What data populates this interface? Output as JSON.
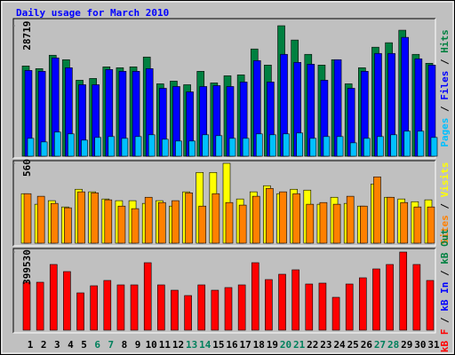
{
  "chart_data": [
    {
      "type": "bar",
      "title": "Daily usage for March 2010",
      "ylim": [
        0,
        28719
      ],
      "yticks": [
        28719
      ],
      "legend_separator": " / ",
      "series": [
        {
          "name": "Hits",
          "color": "#008040",
          "values": [
            19867,
            19277,
            22227,
            21244,
            16720,
            17113,
            19670,
            19473,
            19670,
            21834,
            15933,
            16523,
            15736,
            18687,
            16129,
            17703,
            17900,
            23604,
            20063,
            28719,
            25571,
            22424,
            20063,
            21244,
            15933,
            19473,
            23997,
            24981,
            27735,
            22424,
            20457
          ]
        },
        {
          "name": "Files",
          "color": "#0000ff",
          "values": [
            18883,
            18687,
            21637,
            19473,
            15736,
            15736,
            19080,
            18687,
            18687,
            19277,
            14949,
            15343,
            14162,
            15343,
            15539,
            15343,
            16326,
            21047,
            16326,
            22424,
            20654,
            20260,
            16720,
            21244,
            14949,
            18687,
            22621,
            22621,
            26161,
            21440,
            20063
          ]
        },
        {
          "name": "Pages",
          "color": "#00c0ff",
          "values": [
            3934,
            3147,
            5311,
            4918,
            3541,
            4131,
            4327,
            3934,
            4327,
            4721,
            3737,
            3344,
            3344,
            4721,
            4524,
            3934,
            3934,
            4918,
            4721,
            4918,
            5114,
            3934,
            4327,
            4327,
            2951,
            3934,
            4327,
            4721,
            5508,
            5508,
            4131
          ]
        }
      ]
    },
    {
      "type": "bar",
      "ylim": [
        0,
        560
      ],
      "yticks": [
        560
      ],
      "legend_separator": " / ",
      "series": [
        {
          "name": "Visits",
          "color": "#ffff00",
          "values": [
            347,
            273,
            298,
            254,
            378,
            360,
            310,
            298,
            298,
            279,
            298,
            260,
            360,
            496,
            496,
            560,
            310,
            360,
            403,
            347,
            378,
            372,
            273,
            322,
            279,
            260,
            415,
            322,
            310,
            291,
            304
          ]
        },
        {
          "name": "Sites",
          "color": "#ff8000",
          "values": [
            347,
            329,
            279,
            248,
            360,
            353,
            304,
            260,
            242,
            322,
            285,
            298,
            353,
            260,
            347,
            285,
            267,
            329,
            384,
            360,
            347,
            273,
            285,
            273,
            329,
            260,
            465,
            322,
            285,
            254,
            254
          ]
        }
      ]
    },
    {
      "type": "bar",
      "ylim": [
        0,
        399530
      ],
      "yticks": [
        399530
      ],
      "legend_separator": " / ",
      "categories": [
        "1",
        "2",
        "3",
        "4",
        "5",
        "6",
        "7",
        "8",
        "9",
        "10",
        "11",
        "12",
        "13",
        "14",
        "15",
        "16",
        "17",
        "18",
        "19",
        "20",
        "21",
        "22",
        "23",
        "24",
        "25",
        "26",
        "27",
        "28",
        "29",
        "30",
        "31"
      ],
      "category_colors": [
        "#000000",
        "#000000",
        "#000000",
        "#000000",
        "#000000",
        "#00805c",
        "#00805c",
        "#000000",
        "#000000",
        "#000000",
        "#000000",
        "#000000",
        "#00805c",
        "#00805c",
        "#000000",
        "#000000",
        "#000000",
        "#000000",
        "#000000",
        "#00805c",
        "#00805c",
        "#000000",
        "#000000",
        "#000000",
        "#000000",
        "#000000",
        "#00805c",
        "#00805c",
        "#000000",
        "#000000",
        "#000000"
      ],
      "series": [
        {
          "name": "kB F",
          "color": "#ff0000",
          "values": [
            245160,
            245160,
            335960,
            299640,
            190680,
            227000,
            254240,
            231540,
            231540,
            345040,
            231540,
            204300,
            177060,
            231540,
            204300,
            217920,
            231540,
            345040,
            258780,
            286020,
            308720,
            236080,
            240620,
            167980,
            236080,
            267860,
            313260,
            335960,
            399530,
            335960,
            254240
          ]
        }
      ],
      "legend_extra": [
        {
          "name": "kB In",
          "color": "#0000ff"
        },
        {
          "name": "kB Out",
          "color": "#008040"
        }
      ]
    }
  ]
}
